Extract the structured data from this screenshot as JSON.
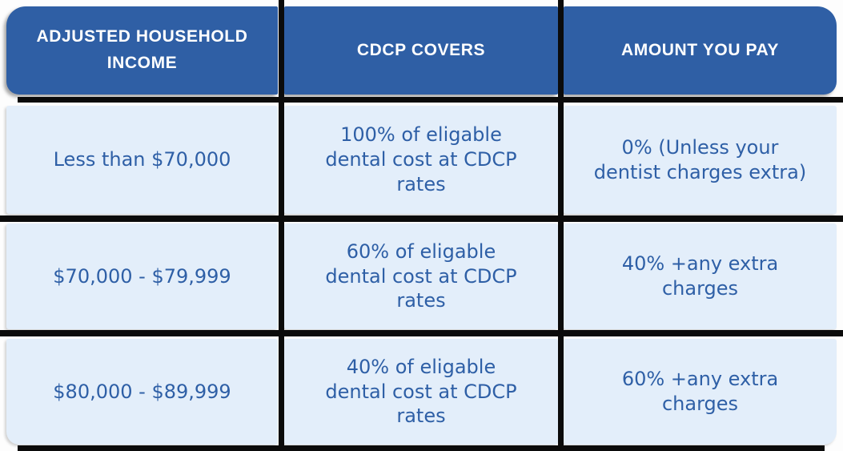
{
  "colors": {
    "header_bg": "#2f5fa5",
    "header_text": "#ffffff",
    "body_bg": "#e3eefa",
    "body_text": "#2e5fa6",
    "grid_line": "#0b0b0b"
  },
  "table": {
    "headers": [
      "ADJUSTED HOUSEHOLD\nINCOME",
      "CDCP COVERS",
      "AMOUNT YOU PAY"
    ],
    "rows": [
      {
        "income": "Less than $70,000",
        "covers": "100% of eligable\ndental cost at CDCP\nrates",
        "pay": "0% (Unless your\ndentist charges extra)"
      },
      {
        "income": "$70,000 - $79,999",
        "covers": "60% of eligable\ndental cost at CDCP\nrates",
        "pay": "40% +any extra\ncharges"
      },
      {
        "income": "$80,000 - $89,999",
        "covers": "40% of eligable\ndental cost at CDCP\nrates",
        "pay": "60% +any extra\ncharges"
      }
    ]
  },
  "chart_data": {
    "type": "table",
    "title": "CDCP dental coverage by adjusted household income",
    "columns": [
      "ADJUSTED HOUSEHOLD INCOME",
      "CDCP COVERS",
      "AMOUNT YOU PAY"
    ],
    "rows": [
      [
        "Less than $70,000",
        "100% of eligable dental cost at CDCP rates",
        "0% (Unless your dentist charges extra)"
      ],
      [
        "$70,000 - $79,999",
        "60% of eligable dental cost at CDCP rates",
        "40% +any extra charges"
      ],
      [
        "$80,000 - $89,999",
        "40% of eligable dental cost at CDCP rates",
        "60% +any extra charges"
      ]
    ]
  }
}
